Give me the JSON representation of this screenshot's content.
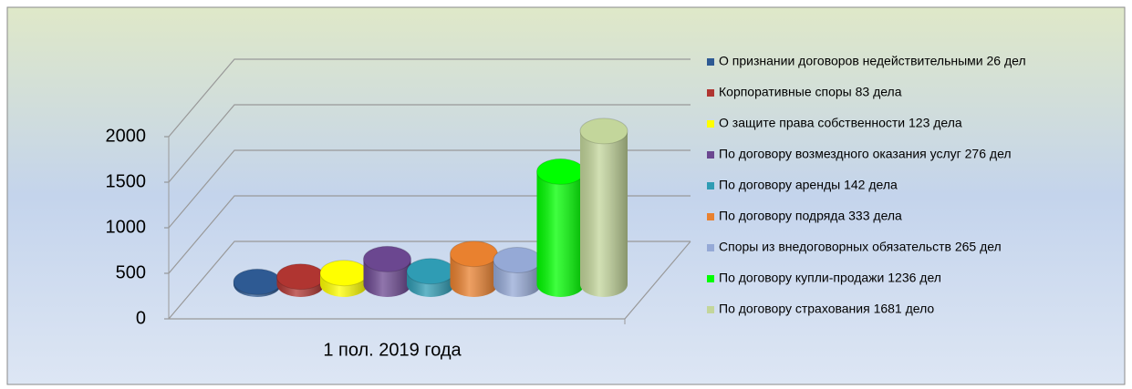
{
  "chart_data": {
    "type": "bar3d-cylinder",
    "categories": [
      "1 пол. 2019 года"
    ],
    "ylim": [
      0,
      2000
    ],
    "yticks": [
      0,
      500,
      1000,
      1500,
      2000
    ],
    "grid": true,
    "series": [
      {
        "name": "О признании договоров недействительными 26 дел",
        "color": "#2e5a93",
        "values": [
          26
        ]
      },
      {
        "name": "Корпоративные споры 83 дела",
        "color": "#b03531",
        "values": [
          83
        ]
      },
      {
        "name": "О защите права собственности 123 дела",
        "color": "#ffff00",
        "values": [
          123
        ]
      },
      {
        "name": "По договору возмездного оказания услуг 276 дел",
        "color": "#6b4790",
        "values": [
          276
        ]
      },
      {
        "name": "По договору аренды 142 дела",
        "color": "#2f9cb4",
        "values": [
          142
        ]
      },
      {
        "name": "По договору подряда 333 дела",
        "color": "#e9812f",
        "values": [
          333
        ]
      },
      {
        "name": "Споры из внедоговорных обязательств 265 дел",
        "color": "#95a9d6",
        "values": [
          265
        ]
      },
      {
        "name": "По договору купли-продажи 1236 дел",
        "color": "#00ff00",
        "values": [
          1236
        ]
      },
      {
        "name": "По договору страхования 1681 дело",
        "color": "#c3d69b",
        "values": [
          1681
        ]
      }
    ]
  }
}
